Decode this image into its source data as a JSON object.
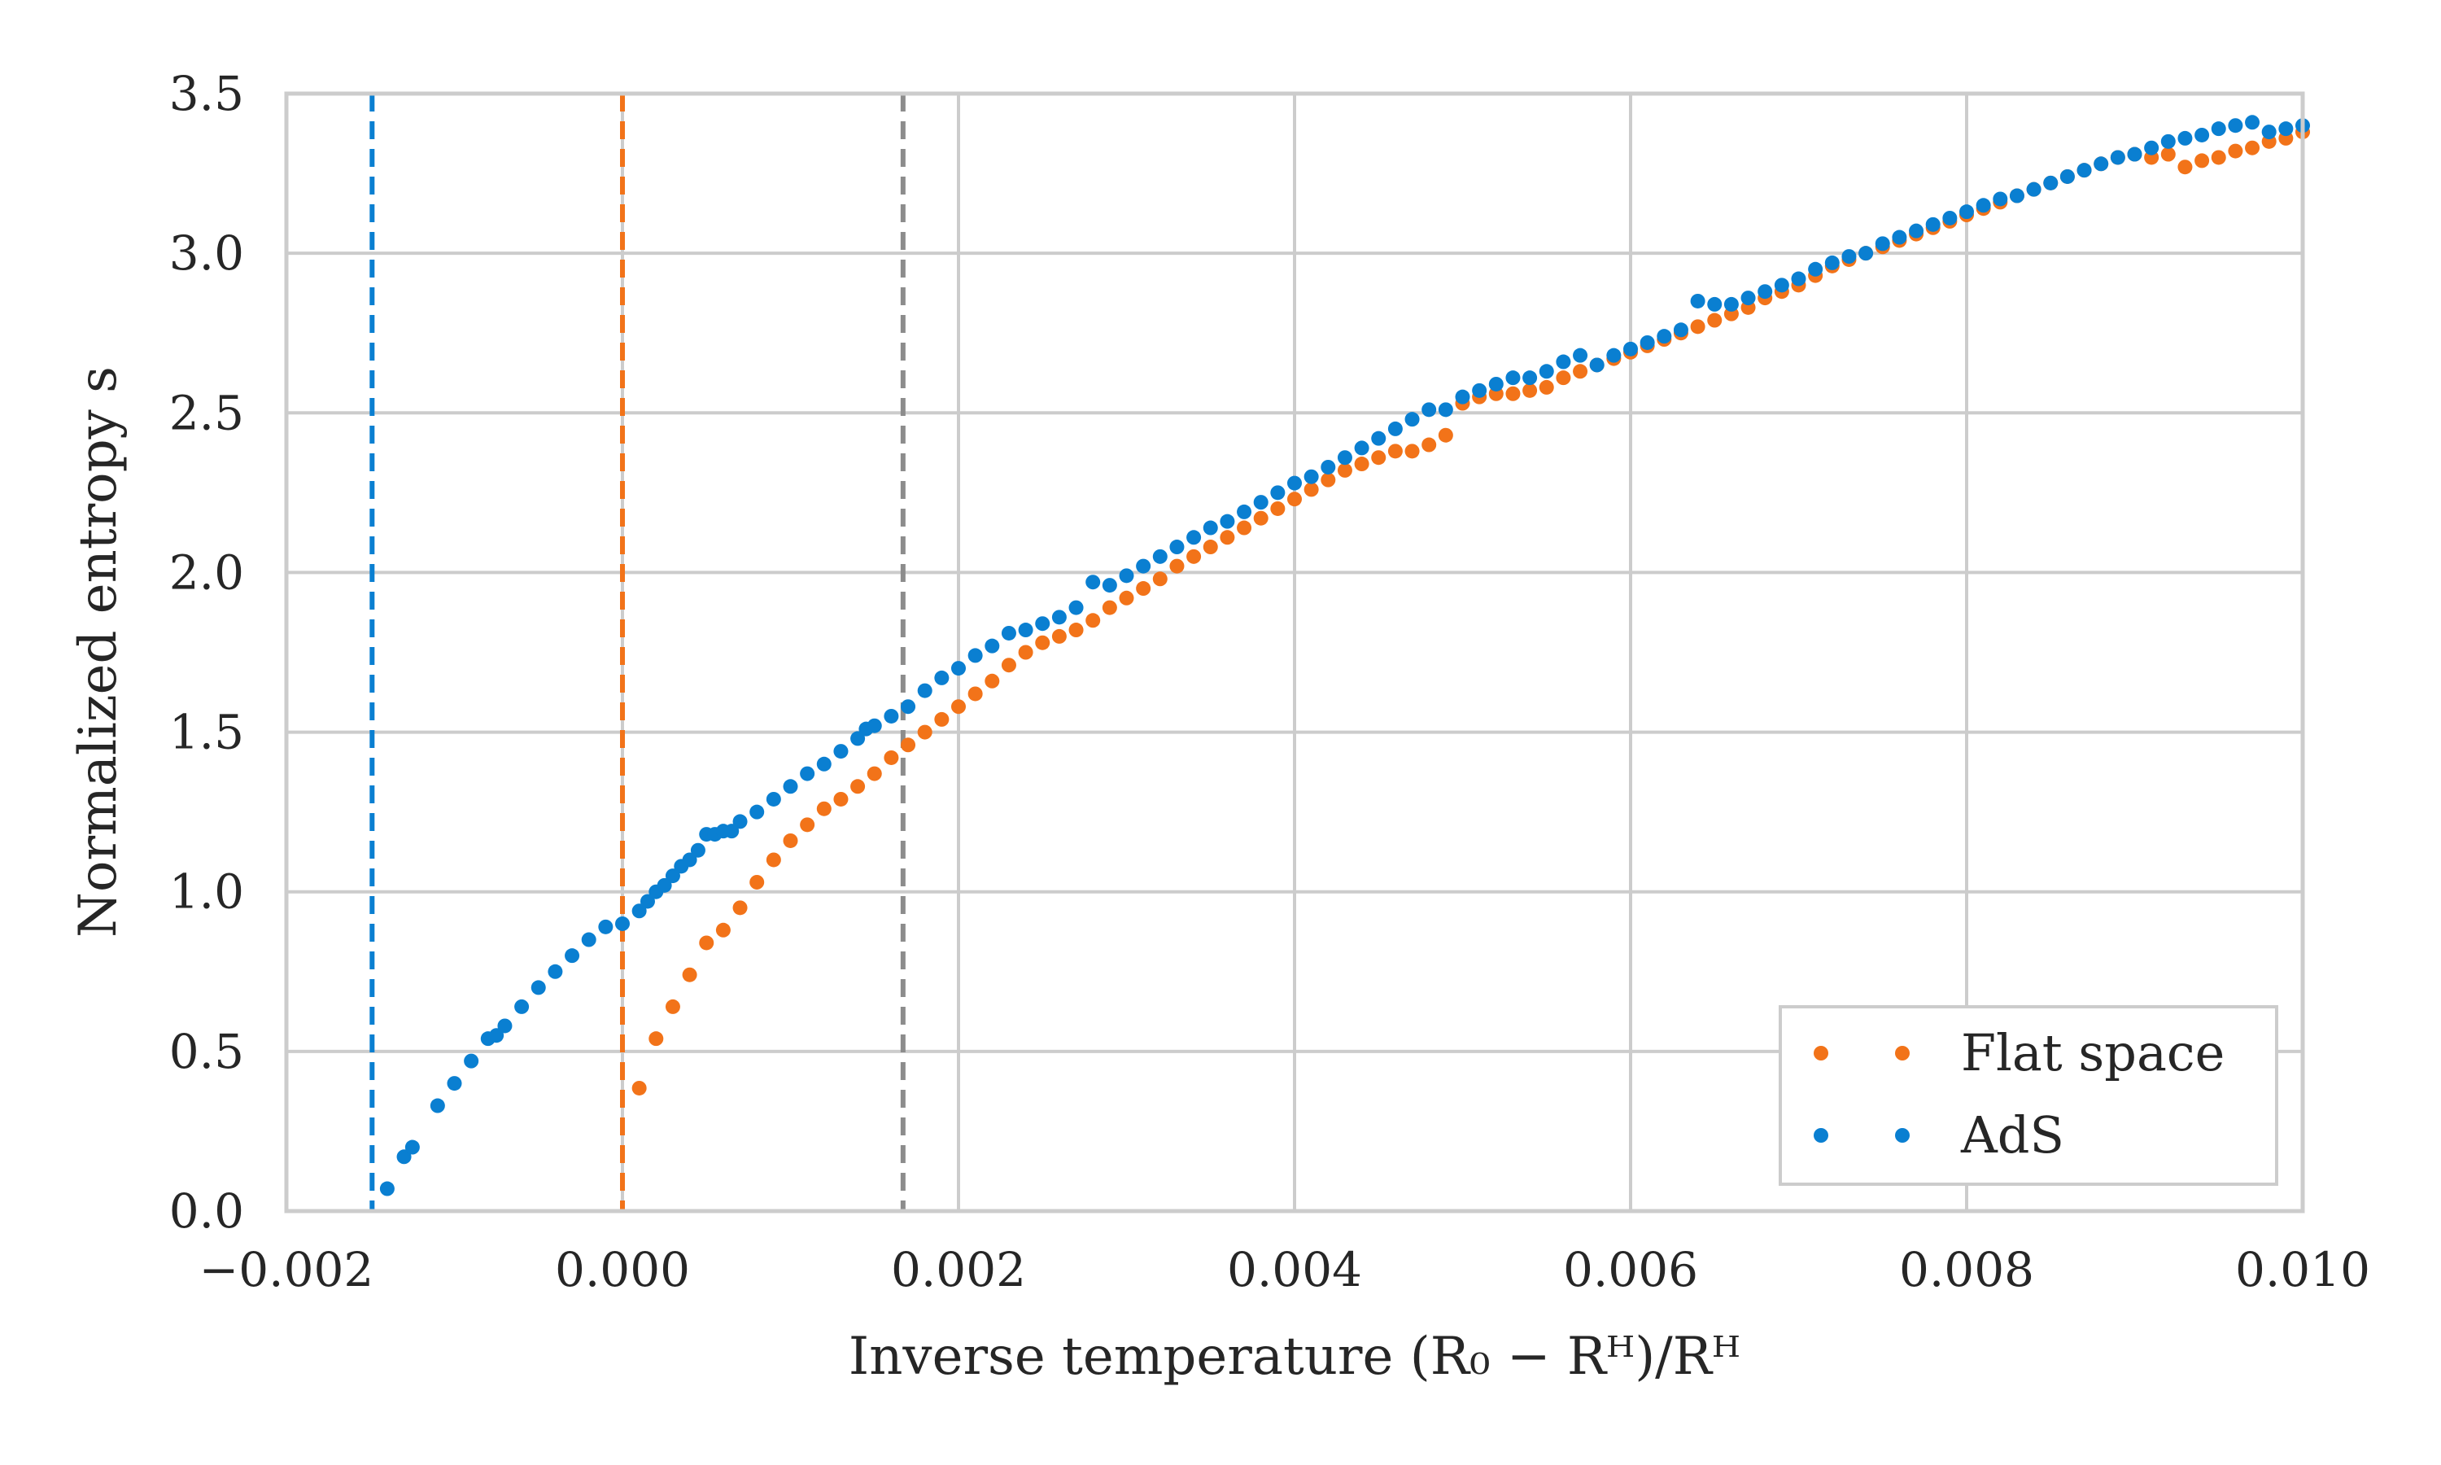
{
  "chart_data": {
    "type": "scatter",
    "title": "",
    "xlabel": "Inverse temperature (R₀ − Rᴴ)/Rᴴ",
    "ylabel": "Normalized entropy s",
    "xlim": [
      -0.002,
      0.01
    ],
    "ylim": [
      0.0,
      3.5
    ],
    "x_ticks": [
      -0.002,
      0.0,
      0.002,
      0.004,
      0.006,
      0.008,
      0.01
    ],
    "x_tick_labels": [
      "−0.002",
      "0.000",
      "0.002",
      "0.004",
      "0.006",
      "0.008",
      "0.010"
    ],
    "y_ticks": [
      0.0,
      0.5,
      1.0,
      1.5,
      2.0,
      2.5,
      3.0,
      3.5
    ],
    "y_tick_labels": [
      "0.0",
      "0.5",
      "1.0",
      "1.5",
      "2.0",
      "2.5",
      "3.0",
      "3.5"
    ],
    "grid": true,
    "legend_position": "bottom-right",
    "vertical_lines": [
      {
        "name": "ads-threshold-line",
        "x": -0.00149,
        "color": "#0a7fd1",
        "style": "dashed"
      },
      {
        "name": "flat-threshold-line",
        "x": 0.0,
        "color": "#f27319",
        "style": "dashed"
      },
      {
        "name": "reference-line",
        "x": 0.00167,
        "color": "#8c8c8c",
        "style": "dashed"
      }
    ],
    "series": [
      {
        "name": "Flat space",
        "color": "#f27319",
        "points": [
          [
            0.0001,
            0.385
          ],
          [
            0.0002,
            0.54
          ],
          [
            0.0003,
            0.64
          ],
          [
            0.0004,
            0.74
          ],
          [
            0.0005,
            0.84
          ],
          [
            0.0006,
            0.88
          ],
          [
            0.0007,
            0.95
          ],
          [
            0.0008,
            1.03
          ],
          [
            0.0009,
            1.1
          ],
          [
            0.001,
            1.16
          ],
          [
            0.0011,
            1.21
          ],
          [
            0.0012,
            1.26
          ],
          [
            0.0013,
            1.29
          ],
          [
            0.0014,
            1.33
          ],
          [
            0.0015,
            1.37
          ],
          [
            0.0016,
            1.42
          ],
          [
            0.0017,
            1.46
          ],
          [
            0.0018,
            1.5
          ],
          [
            0.0019,
            1.54
          ],
          [
            0.002,
            1.58
          ],
          [
            0.0021,
            1.62
          ],
          [
            0.0022,
            1.66
          ],
          [
            0.0023,
            1.71
          ],
          [
            0.0024,
            1.75
          ],
          [
            0.0025,
            1.78
          ],
          [
            0.0026,
            1.8
          ],
          [
            0.0027,
            1.82
          ],
          [
            0.0028,
            1.85
          ],
          [
            0.0029,
            1.89
          ],
          [
            0.003,
            1.92
          ],
          [
            0.0031,
            1.95
          ],
          [
            0.0032,
            1.98
          ],
          [
            0.0033,
            2.02
          ],
          [
            0.0034,
            2.05
          ],
          [
            0.0035,
            2.08
          ],
          [
            0.0036,
            2.11
          ],
          [
            0.0037,
            2.14
          ],
          [
            0.0038,
            2.17
          ],
          [
            0.0039,
            2.2
          ],
          [
            0.004,
            2.23
          ],
          [
            0.0041,
            2.26
          ],
          [
            0.0042,
            2.29
          ],
          [
            0.0043,
            2.32
          ],
          [
            0.0044,
            2.34
          ],
          [
            0.0045,
            2.36
          ],
          [
            0.0046,
            2.38
          ],
          [
            0.0047,
            2.38
          ],
          [
            0.0048,
            2.4
          ],
          [
            0.0049,
            2.43
          ],
          [
            0.005,
            2.53
          ],
          [
            0.0051,
            2.55
          ],
          [
            0.0052,
            2.56
          ],
          [
            0.0053,
            2.56
          ],
          [
            0.0054,
            2.57
          ],
          [
            0.0055,
            2.58
          ],
          [
            0.0056,
            2.61
          ],
          [
            0.0057,
            2.63
          ],
          [
            0.0058,
            2.65
          ],
          [
            0.0059,
            2.67
          ],
          [
            0.006,
            2.69
          ],
          [
            0.0061,
            2.71
          ],
          [
            0.0062,
            2.73
          ],
          [
            0.0063,
            2.75
          ],
          [
            0.0064,
            2.77
          ],
          [
            0.0065,
            2.79
          ],
          [
            0.0066,
            2.81
          ],
          [
            0.0067,
            2.83
          ],
          [
            0.0068,
            2.86
          ],
          [
            0.0069,
            2.88
          ],
          [
            0.007,
            2.9
          ],
          [
            0.0071,
            2.93
          ],
          [
            0.0072,
            2.96
          ],
          [
            0.0073,
            2.98
          ],
          [
            0.0074,
            3.0
          ],
          [
            0.0075,
            3.02
          ],
          [
            0.0076,
            3.04
          ],
          [
            0.0077,
            3.06
          ],
          [
            0.0078,
            3.08
          ],
          [
            0.0079,
            3.1
          ],
          [
            0.008,
            3.12
          ],
          [
            0.0081,
            3.14
          ],
          [
            0.0082,
            3.16
          ],
          [
            0.0083,
            3.18
          ],
          [
            0.0084,
            3.2
          ],
          [
            0.0085,
            3.22
          ],
          [
            0.0086,
            3.24
          ],
          [
            0.0087,
            3.26
          ],
          [
            0.0088,
            3.28
          ],
          [
            0.0089,
            3.3
          ],
          [
            0.009,
            3.31
          ],
          [
            0.0091,
            3.3
          ],
          [
            0.0092,
            3.31
          ],
          [
            0.0093,
            3.27
          ],
          [
            0.0094,
            3.29
          ],
          [
            0.0095,
            3.3
          ],
          [
            0.0096,
            3.32
          ],
          [
            0.0097,
            3.33
          ],
          [
            0.0098,
            3.35
          ],
          [
            0.0099,
            3.36
          ],
          [
            0.01,
            3.38
          ]
        ]
      },
      {
        "name": "AdS",
        "color": "#0a7fd1",
        "points": [
          [
            -0.0014,
            0.07
          ],
          [
            -0.0013,
            0.17
          ],
          [
            -0.00125,
            0.2
          ],
          [
            -0.0011,
            0.33
          ],
          [
            -0.001,
            0.4
          ],
          [
            -0.0009,
            0.47
          ],
          [
            -0.0008,
            0.54
          ],
          [
            -0.00075,
            0.55
          ],
          [
            -0.0007,
            0.58
          ],
          [
            -0.0006,
            0.64
          ],
          [
            -0.0005,
            0.7
          ],
          [
            -0.0004,
            0.75
          ],
          [
            -0.0003,
            0.8
          ],
          [
            -0.0002,
            0.85
          ],
          [
            -0.0001,
            0.89
          ],
          [
            0.0,
            0.9
          ],
          [
            0.0001,
            0.94
          ],
          [
            0.00015,
            0.97
          ],
          [
            0.0002,
            1.0
          ],
          [
            0.00025,
            1.02
          ],
          [
            0.0003,
            1.05
          ],
          [
            0.00035,
            1.08
          ],
          [
            0.0004,
            1.1
          ],
          [
            0.00045,
            1.13
          ],
          [
            0.0005,
            1.18
          ],
          [
            0.00055,
            1.18
          ],
          [
            0.0006,
            1.19
          ],
          [
            0.00065,
            1.19
          ],
          [
            0.0007,
            1.22
          ],
          [
            0.0008,
            1.25
          ],
          [
            0.0009,
            1.29
          ],
          [
            0.001,
            1.33
          ],
          [
            0.0011,
            1.37
          ],
          [
            0.0012,
            1.4
          ],
          [
            0.0013,
            1.44
          ],
          [
            0.0014,
            1.48
          ],
          [
            0.00145,
            1.51
          ],
          [
            0.0015,
            1.52
          ],
          [
            0.0016,
            1.55
          ],
          [
            0.0017,
            1.58
          ],
          [
            0.0018,
            1.63
          ],
          [
            0.0019,
            1.67
          ],
          [
            0.002,
            1.7
          ],
          [
            0.0021,
            1.74
          ],
          [
            0.0022,
            1.77
          ],
          [
            0.0023,
            1.81
          ],
          [
            0.0024,
            1.82
          ],
          [
            0.0025,
            1.84
          ],
          [
            0.0026,
            1.86
          ],
          [
            0.0027,
            1.89
          ],
          [
            0.0028,
            1.97
          ],
          [
            0.0029,
            1.96
          ],
          [
            0.003,
            1.99
          ],
          [
            0.0031,
            2.02
          ],
          [
            0.0032,
            2.05
          ],
          [
            0.0033,
            2.08
          ],
          [
            0.0034,
            2.11
          ],
          [
            0.0035,
            2.14
          ],
          [
            0.0036,
            2.16
          ],
          [
            0.0037,
            2.19
          ],
          [
            0.0038,
            2.22
          ],
          [
            0.0039,
            2.25
          ],
          [
            0.004,
            2.28
          ],
          [
            0.0041,
            2.3
          ],
          [
            0.0042,
            2.33
          ],
          [
            0.0043,
            2.36
          ],
          [
            0.0044,
            2.39
          ],
          [
            0.0045,
            2.42
          ],
          [
            0.0046,
            2.45
          ],
          [
            0.0047,
            2.48
          ],
          [
            0.0048,
            2.51
          ],
          [
            0.0049,
            2.51
          ],
          [
            0.005,
            2.55
          ],
          [
            0.0051,
            2.57
          ],
          [
            0.0052,
            2.59
          ],
          [
            0.0053,
            2.61
          ],
          [
            0.0054,
            2.61
          ],
          [
            0.0055,
            2.63
          ],
          [
            0.0056,
            2.66
          ],
          [
            0.0057,
            2.68
          ],
          [
            0.0058,
            2.65
          ],
          [
            0.0059,
            2.68
          ],
          [
            0.006,
            2.7
          ],
          [
            0.0061,
            2.72
          ],
          [
            0.0062,
            2.74
          ],
          [
            0.0063,
            2.76
          ],
          [
            0.0064,
            2.85
          ],
          [
            0.0065,
            2.84
          ],
          [
            0.0066,
            2.84
          ],
          [
            0.0067,
            2.86
          ],
          [
            0.0068,
            2.88
          ],
          [
            0.0069,
            2.9
          ],
          [
            0.007,
            2.92
          ],
          [
            0.0071,
            2.95
          ],
          [
            0.0072,
            2.97
          ],
          [
            0.0073,
            2.99
          ],
          [
            0.0074,
            3.0
          ],
          [
            0.0075,
            3.03
          ],
          [
            0.0076,
            3.05
          ],
          [
            0.0077,
            3.07
          ],
          [
            0.0078,
            3.09
          ],
          [
            0.0079,
            3.11
          ],
          [
            0.008,
            3.13
          ],
          [
            0.0081,
            3.15
          ],
          [
            0.0082,
            3.17
          ],
          [
            0.0083,
            3.18
          ],
          [
            0.0084,
            3.2
          ],
          [
            0.0085,
            3.22
          ],
          [
            0.0086,
            3.24
          ],
          [
            0.0087,
            3.26
          ],
          [
            0.0088,
            3.28
          ],
          [
            0.0089,
            3.3
          ],
          [
            0.009,
            3.31
          ],
          [
            0.0091,
            3.33
          ],
          [
            0.0092,
            3.35
          ],
          [
            0.0093,
            3.36
          ],
          [
            0.0094,
            3.37
          ],
          [
            0.0095,
            3.39
          ],
          [
            0.0096,
            3.4
          ],
          [
            0.0097,
            3.41
          ],
          [
            0.0098,
            3.38
          ],
          [
            0.0099,
            3.39
          ],
          [
            0.01,
            3.4
          ]
        ]
      }
    ]
  }
}
